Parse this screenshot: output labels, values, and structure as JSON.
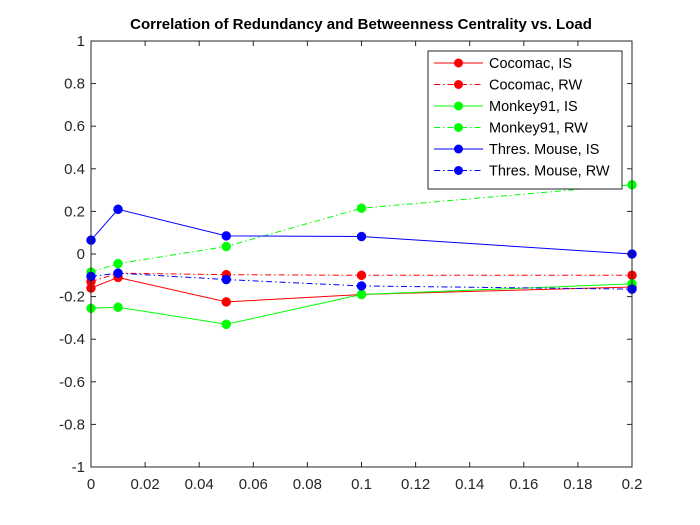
{
  "chart_data": {
    "type": "line",
    "title": "Correlation of Redundancy and Betweenness Centrality vs. Load",
    "xlabel": "",
    "ylabel": "",
    "xlim": [
      0,
      0.2
    ],
    "ylim": [
      -1,
      1
    ],
    "xticks": [
      0,
      0.02,
      0.04,
      0.06,
      0.08,
      0.1,
      0.12,
      0.14,
      0.16,
      0.18,
      0.2
    ],
    "xtick_labels": [
      "0",
      "0.02",
      "0.04",
      "0.06",
      "0.08",
      "0.1",
      "0.12",
      "0.14",
      "0.16",
      "0.18",
      "0.2"
    ],
    "yticks": [
      -1,
      -0.8,
      -0.6,
      -0.4,
      -0.2,
      0,
      0.2,
      0.4,
      0.6,
      0.8,
      1
    ],
    "ytick_labels": [
      "-1",
      "-0.8",
      "-0.6",
      "-0.4",
      "-0.2",
      "0",
      "0.2",
      "0.4",
      "0.6",
      "0.8",
      "1"
    ],
    "grid": false,
    "legend_position": "top-right",
    "x": [
      0,
      0.01,
      0.05,
      0.1,
      0.2
    ],
    "series": [
      {
        "name": "Cocomac, IS",
        "color": "#ff0000",
        "dash": "solid",
        "values": [
          -0.16,
          -0.11,
          -0.225,
          -0.19,
          -0.155
        ]
      },
      {
        "name": "Cocomac, RW",
        "color": "#ff0000",
        "dash": "dashdot",
        "values": [
          -0.13,
          -0.09,
          -0.097,
          -0.1,
          -0.1
        ]
      },
      {
        "name": "Monkey91, IS",
        "color": "#00ff00",
        "dash": "solid",
        "values": [
          -0.255,
          -0.25,
          -0.33,
          -0.19,
          -0.14
        ]
      },
      {
        "name": "Monkey91, RW",
        "color": "#00ff00",
        "dash": "dashdot",
        "values": [
          -0.085,
          -0.045,
          0.035,
          0.215,
          0.325
        ]
      },
      {
        "name": "Thres. Mouse, IS",
        "color": "#0000ff",
        "dash": "solid",
        "values": [
          0.065,
          0.21,
          0.085,
          0.082,
          0.0
        ]
      },
      {
        "name": "Thres. Mouse, RW",
        "color": "#0000ff",
        "dash": "dashdot",
        "values": [
          -0.105,
          -0.09,
          -0.12,
          -0.15,
          -0.165
        ]
      }
    ]
  }
}
